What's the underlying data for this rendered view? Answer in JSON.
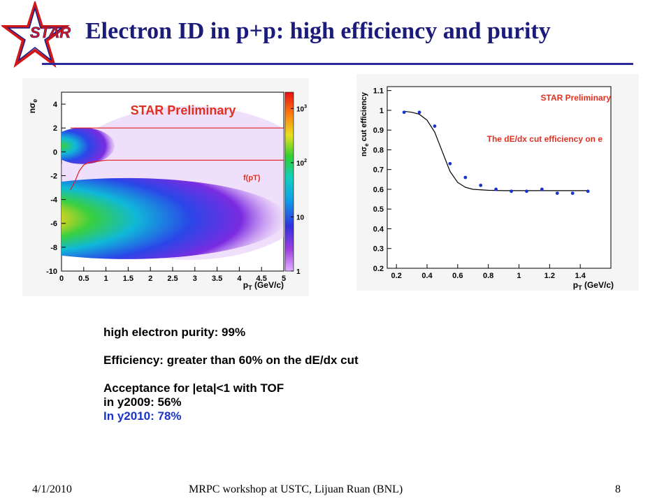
{
  "slide": {
    "logo_text": "STAR",
    "title": "Electron ID in p+p: high efficiency and purity",
    "footer": {
      "date": "4/1/2010",
      "center": "MRPC workshop at USTC, Lijuan Ruan (BNL)",
      "page": "8"
    },
    "bullets": {
      "purity": "high electron purity: 99%",
      "efficiency": "Efficiency: greater than 60%  on the dE/dx cut",
      "acceptance": "Acceptance for |eta|<1 with TOF",
      "y2009": "in y2009: 56%",
      "y2010": "In y2010: 78%"
    },
    "colors": {
      "title": "#1b1b7a",
      "accent_blue": "#1a33cc",
      "preliminary_red": "#e03020"
    }
  },
  "chart_data": [
    {
      "type": "heatmap",
      "xlabel": "p_T (GeV/c)",
      "ylabel": "nσ_e",
      "x_ticks": [
        "0",
        "0.5",
        "1",
        "1.5",
        "2",
        "2.5",
        "3",
        "3.5",
        "4",
        "4.5",
        "5"
      ],
      "y_ticks": [
        "4",
        "2",
        "0",
        "-2",
        "-4",
        "-6",
        "-8",
        "-10"
      ],
      "xlim": [
        0,
        5
      ],
      "ylim": [
        -10,
        5
      ],
      "annotation": "STAR Preliminary",
      "curve_label": "f(p_T)",
      "colorbar_ticks": [
        "10^3",
        "10^2",
        "10",
        "1"
      ],
      "colorbar_scale": "log",
      "cut_lines": [
        {
          "name": "upper",
          "x": [
            0.2,
            5
          ],
          "y": [
            2,
            2
          ]
        },
        {
          "name": "lower",
          "x": [
            0.2,
            0.3,
            0.4,
            0.5,
            0.6,
            0.8,
            1.0,
            5.0
          ],
          "y": [
            -3.2,
            -2.5,
            -1.6,
            -1.1,
            -0.9,
            -0.8,
            -0.7,
            -0.7
          ]
        }
      ],
      "bands": [
        {
          "name": "electron band",
          "center_y": 0.5,
          "max_x": 0.9,
          "level": "medium"
        },
        {
          "name": "hadron band",
          "center_y": -5.6,
          "max_x": 4.6,
          "level": "high"
        }
      ]
    },
    {
      "type": "scatter",
      "annotation_top": "STAR Preliminary",
      "annotation_mid": "The dE/dx cut efficiency on e",
      "xlabel": "p_T (GeV/c)",
      "ylabel": "nσ_e cut efficiency",
      "x_ticks": [
        "0.2",
        "0.4",
        "0.6",
        "0.8",
        "1",
        "1.2",
        "1.4"
      ],
      "y_ticks": [
        "1.1",
        "1",
        "0.9",
        "0.8",
        "0.7",
        "0.6",
        "0.5",
        "0.4",
        "0.3",
        "0.2"
      ],
      "xlim": [
        0.14,
        1.6
      ],
      "ylim": [
        0.2,
        1.12
      ],
      "points": {
        "x": [
          0.25,
          0.35,
          0.45,
          0.55,
          0.65,
          0.75,
          0.85,
          0.95,
          1.05,
          1.15,
          1.25,
          1.35,
          1.45
        ],
        "y": [
          0.99,
          0.99,
          0.92,
          0.73,
          0.66,
          0.62,
          0.6,
          0.59,
          0.59,
          0.6,
          0.58,
          0.58,
          0.59
        ]
      },
      "fit": {
        "x": [
          0.25,
          0.3,
          0.35,
          0.4,
          0.45,
          0.5,
          0.55,
          0.6,
          0.65,
          0.7,
          0.8,
          0.9,
          1.0,
          1.2,
          1.45
        ],
        "y": [
          0.995,
          0.99,
          0.98,
          0.95,
          0.89,
          0.79,
          0.69,
          0.635,
          0.61,
          0.6,
          0.595,
          0.593,
          0.593,
          0.593,
          0.593
        ]
      }
    }
  ]
}
